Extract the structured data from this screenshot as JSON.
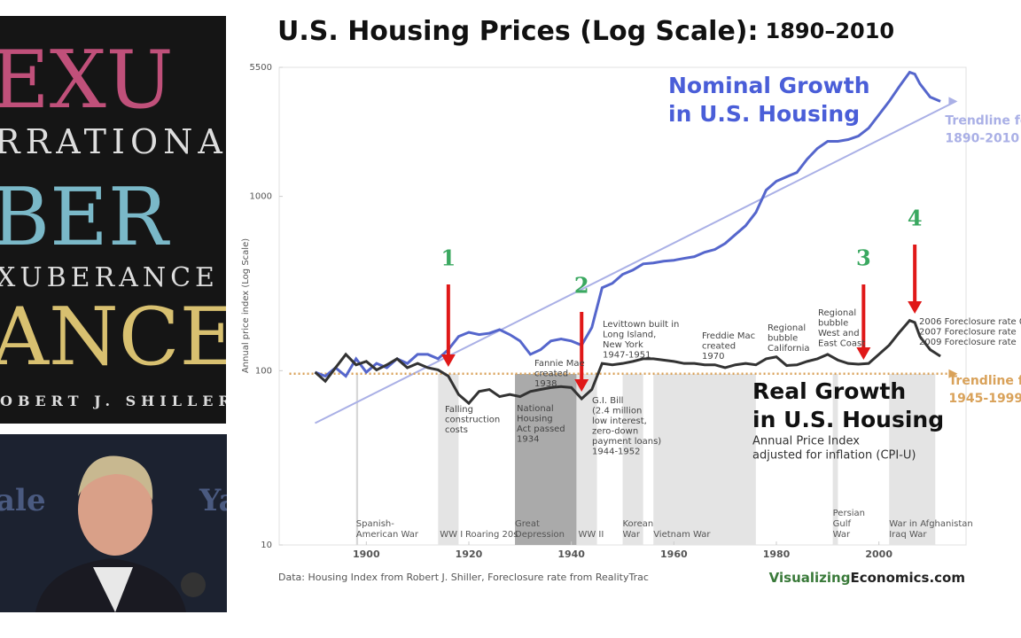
{
  "book_cover": {
    "lines": [
      "EXU",
      "RRATIONAL",
      "BER",
      "XUBERANCE",
      "ANCE",
      "OBERT J. SHILLER"
    ]
  },
  "photo": {
    "signs": [
      "ale",
      "Ya"
    ]
  },
  "chart_data": {
    "type": "line",
    "title": "U.S. Housing Prices (Log Scale):",
    "subtitle": "1890–2010",
    "y_label": "Annual price index (Log Scale)",
    "log_scale": true,
    "xlim": [
      1883,
      2017
    ],
    "xticks": [
      1900,
      1920,
      1940,
      1960,
      1980,
      2000
    ],
    "ylim": [
      10,
      5500
    ],
    "yticks": [
      5500,
      1000,
      100,
      10
    ],
    "series": [
      {
        "name": "Nominal Growth in U.S. Housing",
        "color": "#5566cc",
        "x": [
          1890,
          1892,
          1894,
          1896,
          1898,
          1900,
          1902,
          1904,
          1906,
          1908,
          1910,
          1912,
          1914,
          1916,
          1918,
          1920,
          1922,
          1924,
          1926,
          1928,
          1930,
          1932,
          1934,
          1936,
          1938,
          1940,
          1942,
          1944,
          1946,
          1948,
          1950,
          1952,
          1954,
          1956,
          1958,
          1960,
          1962,
          1964,
          1966,
          1968,
          1970,
          1972,
          1974,
          1976,
          1978,
          1980,
          1982,
          1984,
          1986,
          1988,
          1990,
          1992,
          1994,
          1996,
          1998,
          2000,
          2002,
          2004,
          2006,
          2007,
          2008,
          2010,
          2012
        ],
        "values": [
          98,
          93,
          104,
          93,
          117,
          98,
          110,
          104,
          117,
          110,
          124,
          124,
          117,
          132,
          157,
          166,
          161,
          164,
          172,
          161,
          148,
          124,
          132,
          148,
          152,
          148,
          140,
          177,
          299,
          317,
          357,
          378,
          410,
          415,
          425,
          430,
          441,
          451,
          478,
          496,
          537,
          604,
          679,
          809,
          1086,
          1222,
          1295,
          1372,
          1636,
          1884,
          2070,
          2070,
          2118,
          2219,
          2466,
          2940,
          3508,
          4276,
          5155,
          5035,
          4428,
          3715,
          3508
        ]
      },
      {
        "name": "Real Growth in U.S. Housing",
        "color": "#333333",
        "x": [
          1890,
          1892,
          1894,
          1896,
          1898,
          1900,
          1902,
          1904,
          1906,
          1908,
          1910,
          1912,
          1914,
          1916,
          1918,
          1920,
          1922,
          1924,
          1926,
          1928,
          1930,
          1932,
          1934,
          1936,
          1938,
          1940,
          1942,
          1944,
          1946,
          1948,
          1950,
          1952,
          1954,
          1956,
          1958,
          1960,
          1962,
          1964,
          1966,
          1968,
          1970,
          1972,
          1974,
          1976,
          1978,
          1980,
          1982,
          1984,
          1986,
          1988,
          1990,
          1992,
          1994,
          1996,
          1998,
          2000,
          2002,
          2004,
          2006,
          2007,
          2008,
          2010,
          2012
        ],
        "values": [
          98,
          87,
          104,
          124,
          108,
          113,
          101,
          108,
          117,
          104,
          110,
          104,
          101,
          93,
          73,
          65,
          76,
          78,
          71,
          73,
          71,
          76,
          78,
          80,
          81,
          80,
          69,
          78,
          110,
          108,
          110,
          113,
          117,
          117,
          115,
          113,
          110,
          110,
          108,
          108,
          104,
          108,
          110,
          108,
          117,
          120,
          107,
          108,
          113,
          117,
          124,
          115,
          110,
          109,
          110,
          124,
          140,
          166,
          194,
          189,
          157,
          132,
          121
        ]
      }
    ],
    "series_notes": [
      "Annual Price Index",
      "adjusted for inflation (CPI-U)"
    ],
    "trendlines": [
      {
        "label": [
          "Trendline fo",
          "1890-2010"
        ],
        "color": "#aab0e6",
        "x": [
          1890,
          2015
        ],
        "values": [
          50,
          3508
        ]
      },
      {
        "label": [
          "Trendline f",
          "1945-1999"
        ],
        "color": "#d9a25a",
        "x": [
          1885,
          2015
        ],
        "values": [
          96,
          96
        ]
      }
    ],
    "periods": [
      {
        "label": [
          "Spanish-",
          "American War"
        ],
        "start": 1898,
        "end": 1898.4,
        "color": "#d8d8d8"
      },
      {
        "label": [
          "WW I"
        ],
        "start": 1914,
        "end": 1918,
        "color": "#e4e4e4"
      },
      {
        "label": [
          "Roaring 20s"
        ],
        "start": null,
        "end": null,
        "color": null
      },
      {
        "label": [
          "Great",
          "Depression"
        ],
        "start": 1929,
        "end": 1941,
        "color": "#aaaaaa"
      },
      {
        "label": [
          "WW II"
        ],
        "start": 1941,
        "end": 1945,
        "color": "#e4e4e4"
      },
      {
        "label": [
          "Korean",
          "War"
        ],
        "start": 1950,
        "end": 1954,
        "color": "#e4e4e4"
      },
      {
        "label": [
          "Vietnam War"
        ],
        "start": 1956,
        "end": 1976,
        "color": "#e4e4e4"
      },
      {
        "label": [
          "Persian",
          "Gulf",
          "War"
        ],
        "start": 1991,
        "end": 1992,
        "color": "#e4e4e4"
      },
      {
        "label": [
          "War in Afghanistan",
          "Iraq War"
        ],
        "start": 2002,
        "end": 2011,
        "color": "#e4e4e4"
      }
    ],
    "markers": [
      {
        "label": "1",
        "x": 1916
      },
      {
        "label": "2",
        "x": 1942
      },
      {
        "label": "3",
        "x": 1997
      },
      {
        "label": "4",
        "x": 2007
      }
    ],
    "annotations": [
      {
        "lines": [
          "Falling",
          "construction",
          "costs"
        ]
      },
      {
        "lines": [
          "Fannie Mae",
          "created",
          "1938"
        ]
      },
      {
        "lines": [
          "National",
          "Housing",
          "Act passed",
          "1934"
        ]
      },
      {
        "lines": [
          "G.I. Bill",
          "(2.4 million",
          "low interest,",
          "zero-down",
          "payment loans)",
          "1944-1952"
        ]
      },
      {
        "lines": [
          "Levittown built in",
          "Long Island,",
          "New York",
          "1947-1951"
        ]
      },
      {
        "lines": [
          "Freddie Mac",
          "created",
          "1970"
        ]
      },
      {
        "lines": [
          "Regional",
          "bubble",
          "California"
        ]
      },
      {
        "lines": [
          "Regional",
          "bubble",
          "West and",
          "East Coast"
        ]
      },
      {
        "lines": [
          "2006 Foreclosure rate 0.",
          "2007 Foreclosure rate",
          "2009 Foreclosure rate"
        ]
      }
    ],
    "source": "Data: Housing Index from Robert J. Shiller, Foreclosure rate from RealityTrac",
    "brand": [
      "Visualizing",
      "Economics.com"
    ]
  }
}
